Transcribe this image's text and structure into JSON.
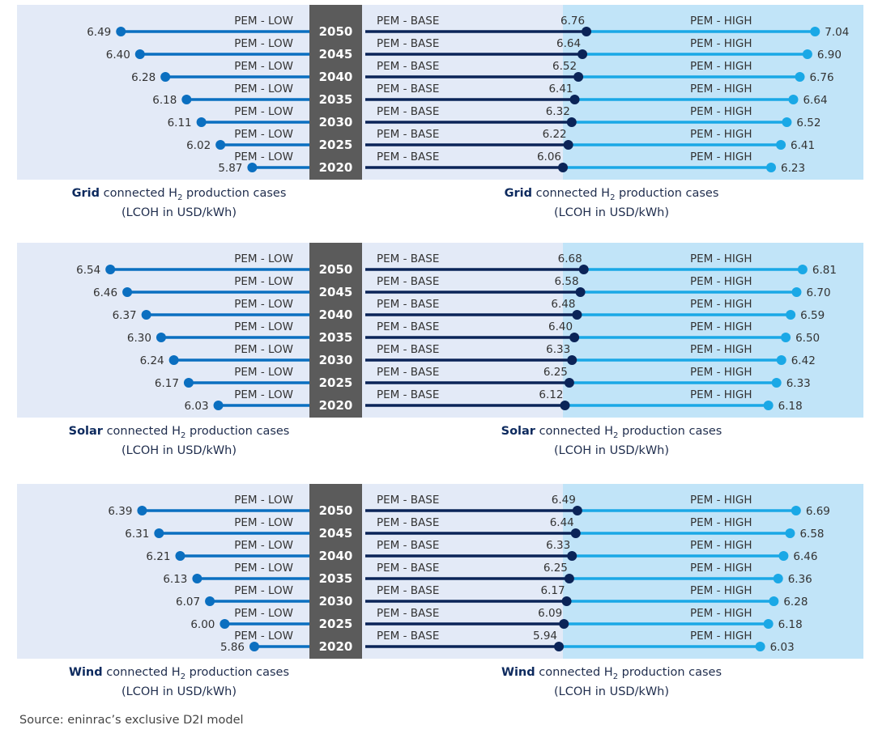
{
  "labels": {
    "low": "PEM - LOW",
    "base": "PEM - BASE",
    "high": "PEM - HIGH",
    "caption_suffix_pre": "connected H",
    "caption_sub": "2",
    "caption_suffix_post": "production cases",
    "caption_unit": "(LCOH in USD/kWh)"
  },
  "source": "Source: eninrac’s exclusive D2I model",
  "colors": {
    "panel_left": "#e3eaf7",
    "panel_right": "#c1e4f8",
    "year_band": "#5b5b5b",
    "low": "#0b6fc0",
    "base": "#0b2458",
    "high": "#1aa8e6"
  },
  "chart_data": [
    {
      "type": "dumbbell",
      "name": "Grid",
      "years": [
        "2050",
        "2045",
        "2040",
        "2035",
        "2030",
        "2025",
        "2020"
      ],
      "series": [
        {
          "name": "PEM - LOW",
          "values": [
            "6.49",
            "6.40",
            "6.28",
            "6.18",
            "6.11",
            "6.02",
            "5.87"
          ]
        },
        {
          "name": "PEM - BASE",
          "values": [
            "6.76",
            "6.64",
            "6.52",
            "6.41",
            "6.32",
            "6.22",
            "6.06"
          ]
        },
        {
          "name": "PEM - HIGH",
          "values": [
            "7.04",
            "6.90",
            "6.76",
            "6.64",
            "6.52",
            "6.41",
            "6.23"
          ]
        }
      ]
    },
    {
      "type": "dumbbell",
      "name": "Solar",
      "years": [
        "2050",
        "2045",
        "2040",
        "2035",
        "2030",
        "2025",
        "2020"
      ],
      "series": [
        {
          "name": "PEM - LOW",
          "values": [
            "6.54",
            "6.46",
            "6.37",
            "6.30",
            "6.24",
            "6.17",
            "6.03"
          ]
        },
        {
          "name": "PEM - BASE",
          "values": [
            "6.68",
            "6.58",
            "6.48",
            "6.40",
            "6.33",
            "6.25",
            "6.12"
          ]
        },
        {
          "name": "PEM - HIGH",
          "values": [
            "6.81",
            "6.70",
            "6.59",
            "6.50",
            "6.42",
            "6.33",
            "6.18"
          ]
        }
      ]
    },
    {
      "type": "dumbbell",
      "name": "Wind",
      "years": [
        "2050",
        "2045",
        "2040",
        "2035",
        "2030",
        "2025",
        "2020"
      ],
      "series": [
        {
          "name": "PEM - LOW",
          "values": [
            "6.39",
            "6.31",
            "6.21",
            "6.13",
            "6.07",
            "6.00",
            "5.86"
          ]
        },
        {
          "name": "PEM - BASE",
          "values": [
            "6.49",
            "6.44",
            "6.33",
            "6.25",
            "6.17",
            "6.09",
            "5.94"
          ]
        },
        {
          "name": "PEM - HIGH",
          "values": [
            "6.69",
            "6.58",
            "6.46",
            "6.36",
            "6.28",
            "6.18",
            "6.03"
          ]
        }
      ]
    }
  ]
}
